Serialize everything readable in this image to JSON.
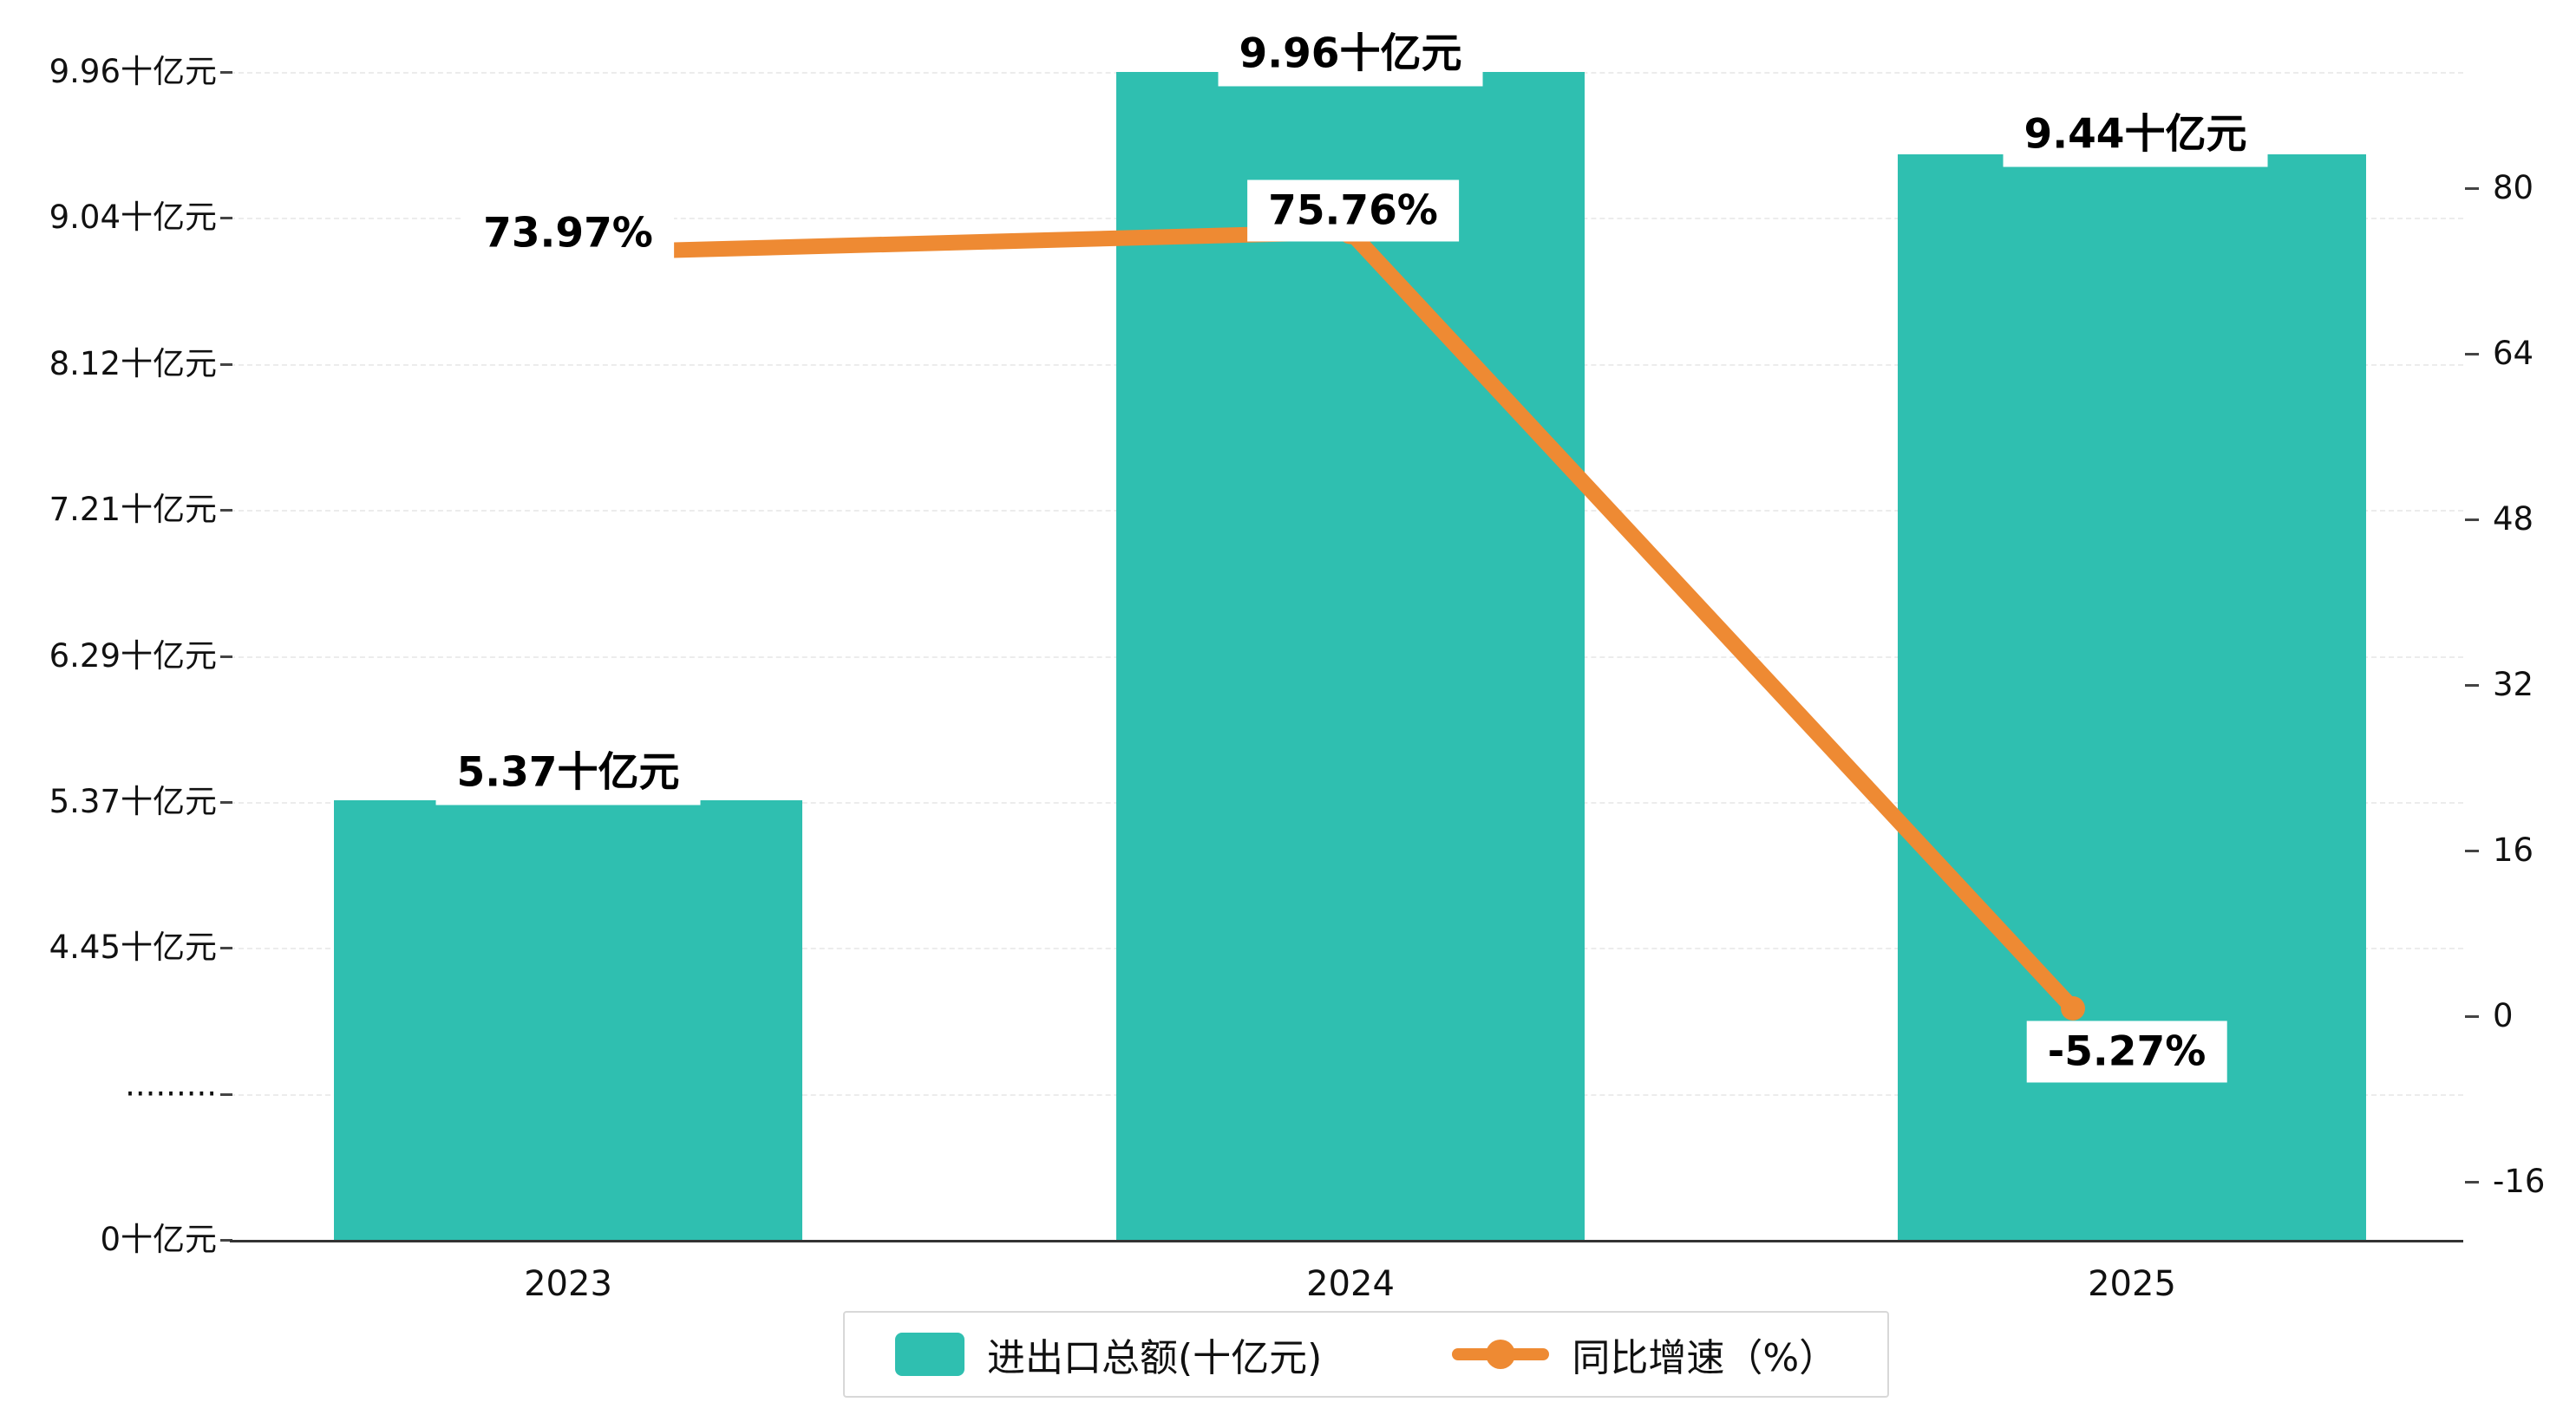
{
  "chart_data": {
    "type": "bar",
    "subtype": "bar-line-combo",
    "categories": [
      "2023",
      "2024",
      "2025"
    ],
    "series": [
      {
        "name": "进出口总额(十亿元)",
        "type": "bar",
        "axis": "left",
        "values": [
          5.37,
          9.96,
          9.44
        ],
        "labels": [
          "5.37十亿元",
          "9.96十亿元",
          "9.44十亿元"
        ],
        "color": "#2fbfb0"
      },
      {
        "name": "同比增速（%）",
        "type": "line",
        "axis": "right",
        "values": [
          73.97,
          75.76,
          -5.27
        ],
        "labels": [
          "73.97%",
          "75.76%",
          "-5.27%"
        ],
        "color": "#ee8a33"
      }
    ],
    "left_axis": {
      "tick_labels": [
        "9.96十亿元",
        "9.04十亿元",
        "8.12十亿元",
        "7.21十亿元",
        "6.29十亿元",
        "5.37十亿元",
        "4.45十亿元",
        "·········",
        "0十亿元"
      ],
      "tick_values": [
        9.96,
        9.04,
        8.12,
        7.21,
        6.29,
        5.37,
        4.45,
        null,
        0
      ],
      "has_break": true
    },
    "right_axis": {
      "tick_labels": [
        "80",
        "64",
        "48",
        "32",
        "16",
        "0",
        "-16"
      ],
      "tick_values": [
        80,
        64,
        48,
        32,
        16,
        0,
        -16
      ],
      "range": [
        -16,
        80
      ]
    },
    "grid": "horizontal-dashed",
    "legend_position": "bottom-center"
  },
  "legend": {
    "items": [
      {
        "label": "进出口总额(十亿元)",
        "marker": "bar-swatch"
      },
      {
        "label": "同比增速（%）",
        "marker": "line-dot"
      }
    ]
  }
}
